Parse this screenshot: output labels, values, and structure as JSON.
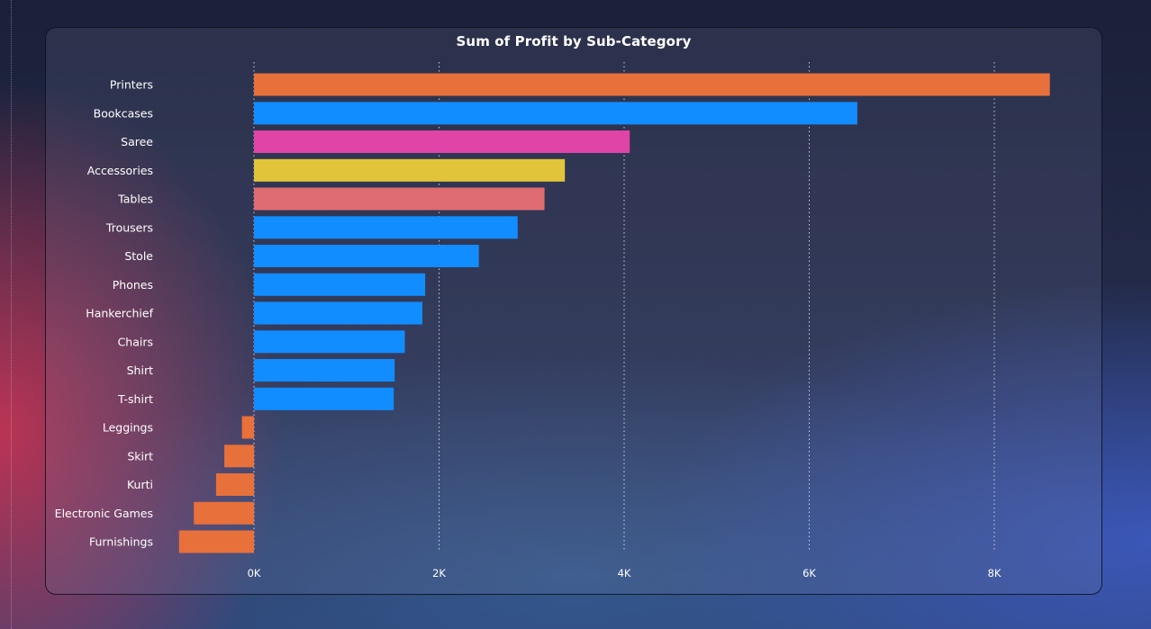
{
  "chart_data": {
    "type": "bar",
    "orientation": "horizontal",
    "title": "Sum of Profit by Sub-Category",
    "xlabel": "",
    "ylabel": "",
    "categories": [
      "Printers",
      "Bookcases",
      "Saree",
      "Accessories",
      "Tables",
      "Trousers",
      "Stole",
      "Phones",
      "Hankerchief",
      "Chairs",
      "Shirt",
      "T-shirt",
      "Leggings",
      "Skirt",
      "Kurti",
      "Electronic Games",
      "Furnishings"
    ],
    "values": [
      8600,
      6520,
      4060,
      3360,
      3140,
      2850,
      2430,
      1850,
      1820,
      1630,
      1520,
      1510,
      -130,
      -320,
      -410,
      -650,
      -810
    ],
    "colors": [
      "#e8703a",
      "#118dff",
      "#e044a7",
      "#e2c43a",
      "#df6c72",
      "#118dff",
      "#118dff",
      "#118dff",
      "#118dff",
      "#118dff",
      "#118dff",
      "#118dff",
      "#e8703a",
      "#e8703a",
      "#e8703a",
      "#e8703a",
      "#e8703a"
    ],
    "xlim": [
      -1000,
      8800
    ],
    "xticks": [
      0,
      2000,
      4000,
      6000,
      8000
    ],
    "xtick_labels": [
      "0K",
      "2K",
      "4K",
      "6K",
      "8K"
    ],
    "grid": "vertical-dotted",
    "legend": "none"
  }
}
